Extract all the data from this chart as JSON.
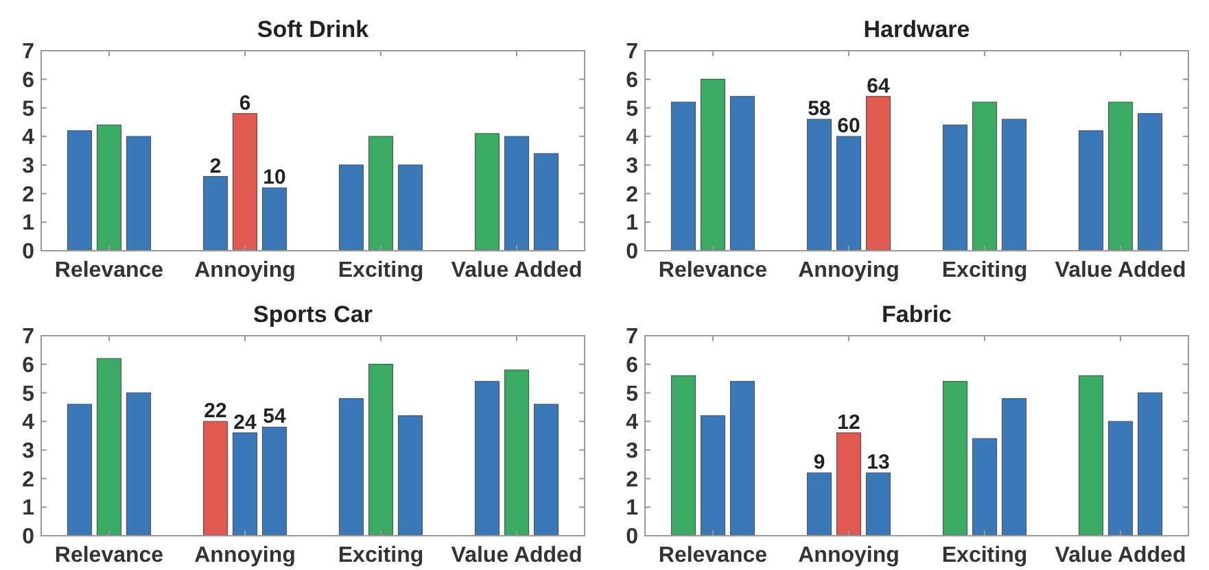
{
  "chart_data": [
    {
      "type": "bar",
      "title": "Soft Drink",
      "categories": [
        "Relevance",
        "Annoying",
        "Exciting",
        "Value Added"
      ],
      "ylim": [
        0,
        7
      ],
      "yticks": [
        0,
        1,
        2,
        3,
        4,
        5,
        6,
        7
      ],
      "series": [
        {
          "values": [
            4.2,
            2.6,
            3.0,
            4.1
          ],
          "colors": [
            "#3a78b8",
            "#3a78b8",
            "#3a78b8",
            "#3aaa64"
          ]
        },
        {
          "values": [
            4.4,
            4.8,
            4.0,
            4.0
          ],
          "colors": [
            "#3aaa64",
            "#e05a52",
            "#3aaa64",
            "#3a78b8"
          ]
        },
        {
          "values": [
            4.0,
            2.2,
            3.0,
            3.4
          ],
          "colors": [
            "#3a78b8",
            "#3a78b8",
            "#3a78b8",
            "#3a78b8"
          ]
        }
      ],
      "annotations": [
        "2",
        "6",
        "10"
      ]
    },
    {
      "type": "bar",
      "title": "Hardware",
      "categories": [
        "Relevance",
        "Annoying",
        "Exciting",
        "Value Added"
      ],
      "ylim": [
        0,
        7
      ],
      "yticks": [
        0,
        1,
        2,
        3,
        4,
        5,
        6,
        7
      ],
      "series": [
        {
          "values": [
            5.2,
            4.6,
            4.4,
            4.2
          ],
          "colors": [
            "#3a78b8",
            "#3a78b8",
            "#3a78b8",
            "#3a78b8"
          ]
        },
        {
          "values": [
            6.0,
            4.0,
            5.2,
            5.2
          ],
          "colors": [
            "#3aaa64",
            "#3a78b8",
            "#3aaa64",
            "#3aaa64"
          ]
        },
        {
          "values": [
            5.4,
            5.4,
            4.6,
            4.8
          ],
          "colors": [
            "#3a78b8",
            "#e05a52",
            "#3a78b8",
            "#3a78b8"
          ]
        }
      ],
      "annotations": [
        "58",
        "60",
        "64"
      ]
    },
    {
      "type": "bar",
      "title": "Sports Car",
      "categories": [
        "Relevance",
        "Annoying",
        "Exciting",
        "Value Added"
      ],
      "ylim": [
        0,
        7
      ],
      "yticks": [
        0,
        1,
        2,
        3,
        4,
        5,
        6,
        7
      ],
      "series": [
        {
          "values": [
            4.6,
            4.0,
            4.8,
            5.4
          ],
          "colors": [
            "#3a78b8",
            "#e05a52",
            "#3a78b8",
            "#3a78b8"
          ]
        },
        {
          "values": [
            6.2,
            3.6,
            6.0,
            5.8
          ],
          "colors": [
            "#3aaa64",
            "#3a78b8",
            "#3aaa64",
            "#3aaa64"
          ]
        },
        {
          "values": [
            5.0,
            3.8,
            4.2,
            4.6
          ],
          "colors": [
            "#3a78b8",
            "#3a78b8",
            "#3a78b8",
            "#3a78b8"
          ]
        }
      ],
      "annotations": [
        "22",
        "24",
        "54"
      ]
    },
    {
      "type": "bar",
      "title": "Fabric",
      "categories": [
        "Relevance",
        "Annoying",
        "Exciting",
        "Value Added"
      ],
      "ylim": [
        0,
        7
      ],
      "yticks": [
        0,
        1,
        2,
        3,
        4,
        5,
        6,
        7
      ],
      "series": [
        {
          "values": [
            5.6,
            2.2,
            5.4,
            5.6
          ],
          "colors": [
            "#3aaa64",
            "#3a78b8",
            "#3aaa64",
            "#3aaa64"
          ]
        },
        {
          "values": [
            4.2,
            3.6,
            3.4,
            4.0
          ],
          "colors": [
            "#3a78b8",
            "#e05a52",
            "#3a78b8",
            "#3a78b8"
          ]
        },
        {
          "values": [
            5.4,
            2.2,
            4.8,
            5.0
          ],
          "colors": [
            "#3a78b8",
            "#3a78b8",
            "#3a78b8",
            "#3a78b8"
          ]
        }
      ],
      "annotations": [
        "9",
        "12",
        "13"
      ]
    }
  ]
}
